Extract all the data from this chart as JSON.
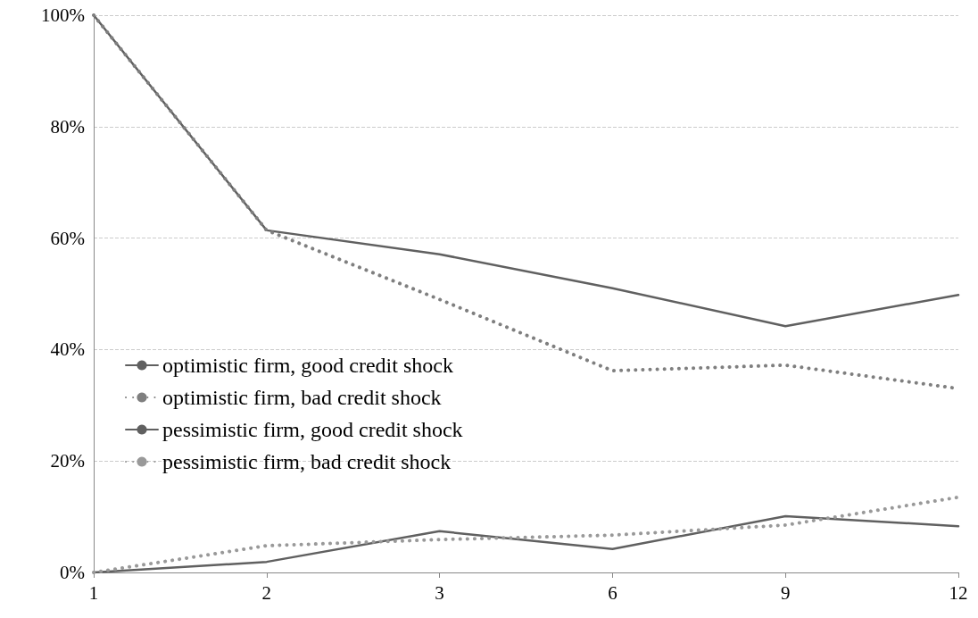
{
  "chart_data": {
    "type": "line",
    "categories": [
      "1",
      "2",
      "3",
      "6",
      "9",
      "12"
    ],
    "series": [
      {
        "name": "optimistic firm, good credit shock",
        "color": "#606060",
        "line_style": "solid",
        "values": [
          100,
          61.4,
          57.1,
          51.0,
          44.2,
          49.8
        ]
      },
      {
        "name": "optimistic firm, bad credit shock",
        "color": "#7f7f7f",
        "line_style": "dotted",
        "values": [
          100,
          61.4,
          49.0,
          36.2,
          37.2,
          33.0
        ]
      },
      {
        "name": "pessimistic firm, good credit shock",
        "color": "#606060",
        "line_style": "solid",
        "values": [
          0,
          1.9,
          7.4,
          4.2,
          10.1,
          8.3
        ]
      },
      {
        "name": "pessimistic firm, bad credit shock",
        "color": "#999999",
        "line_style": "dotted",
        "values": [
          0,
          4.8,
          5.9,
          6.7,
          8.5,
          13.5
        ]
      }
    ],
    "ylim": [
      0,
      100
    ],
    "yticks": [
      {
        "value": 0,
        "label": "0%"
      },
      {
        "value": 20,
        "label": "20%"
      },
      {
        "value": 40,
        "label": "40%"
      },
      {
        "value": 60,
        "label": "60%"
      },
      {
        "value": 80,
        "label": "80%"
      },
      {
        "value": 100,
        "label": "100%"
      }
    ],
    "grid": "y",
    "legend": "left",
    "marker": "none"
  }
}
